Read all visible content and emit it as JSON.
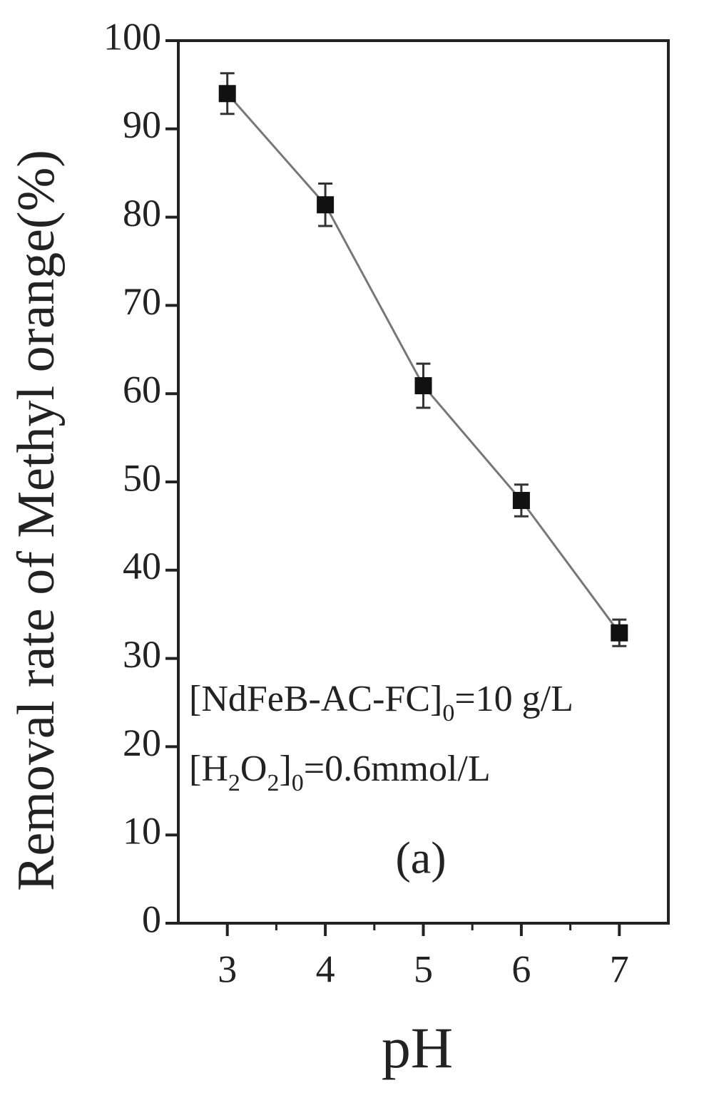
{
  "chart_data": {
    "type": "line",
    "x_label": "pH",
    "y_label": "Removal rate of Methyl orange(%)",
    "x": [
      3,
      4,
      5,
      6,
      7
    ],
    "series": [
      {
        "color": "#111111",
        "line_color": "#777777",
        "marker": "square",
        "values": [
          94,
          81.4,
          60.9,
          47.9,
          32.9
        ],
        "errors": [
          2.3,
          2.4,
          2.5,
          1.8,
          1.5
        ]
      }
    ],
    "xlim": [
      2.5,
      7.5
    ],
    "xticks": [
      3,
      4,
      5,
      6,
      7
    ],
    "xminorticks": [
      3.5,
      4.5,
      5.5,
      6.5
    ],
    "ylim": [
      0,
      100
    ],
    "yticks": [
      0,
      10,
      20,
      30,
      40,
      50,
      60,
      70,
      80,
      90,
      100
    ],
    "annotations": [
      [
        "[NdFeB-AC-FC]",
        "0",
        "=10 g/L"
      ],
      [
        "[H",
        "2",
        "O",
        "2",
        "]",
        "0",
        "=0.6mmol/L"
      ]
    ],
    "panel_label": "(a)"
  }
}
